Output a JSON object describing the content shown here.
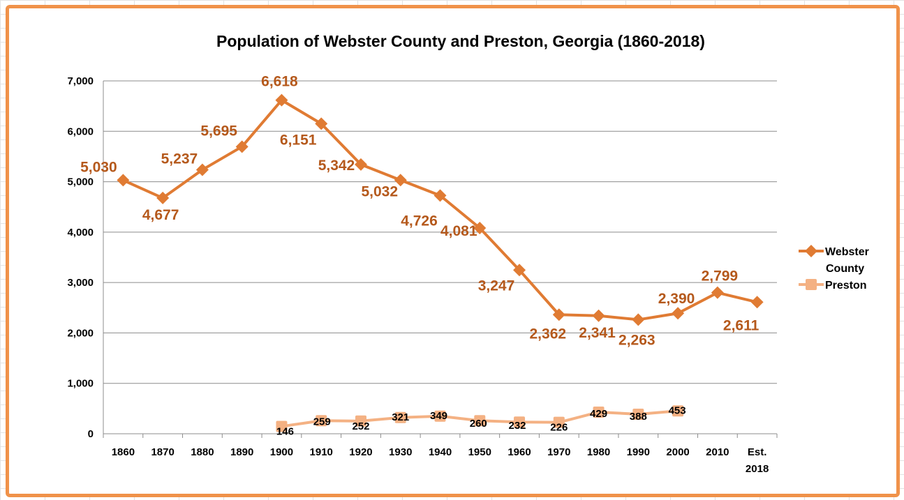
{
  "chart_data": {
    "type": "line",
    "title": "Population of Webster County and Preston, Georgia (1860-2018)",
    "categories": [
      "1860",
      "1870",
      "1880",
      "1890",
      "1900",
      "1910",
      "1920",
      "1930",
      "1940",
      "1950",
      "1960",
      "1970",
      "1980",
      "1990",
      "2000",
      "2010",
      "Est. 2018"
    ],
    "ylim": [
      0,
      7000
    ],
    "yticks": [
      0,
      1000,
      2000,
      3000,
      4000,
      5000,
      6000,
      7000
    ],
    "ytick_labels": [
      "0",
      "1,000",
      "2,000",
      "3,000",
      "4,000",
      "5,000",
      "6,000",
      "7,000"
    ],
    "grid": true,
    "legend_position": "right",
    "series": [
      {
        "name": "Webster County",
        "color": "#e07b33",
        "label_color": "#b5591c",
        "marker": "diamond",
        "values": [
          5030,
          4677,
          5237,
          5695,
          6618,
          6151,
          5342,
          5032,
          4726,
          4081,
          3247,
          2362,
          2341,
          2263,
          2390,
          2799,
          2611
        ],
        "labels": [
          "5,030",
          "4,677",
          "5,237",
          "5,695",
          "6,618",
          "6,151",
          "5,342",
          "5,032",
          "4,726",
          "4,081",
          "3,247",
          "2,362",
          "2,341",
          "2,263",
          "2,390",
          "2,799",
          "2,611"
        ]
      },
      {
        "name": "Preston",
        "color": "#f4b183",
        "marker": "square",
        "values": [
          null,
          null,
          null,
          null,
          146,
          259,
          252,
          321,
          349,
          260,
          232,
          226,
          429,
          388,
          453,
          null,
          null
        ],
        "labels": [
          "",
          "",
          "",
          "",
          "146",
          "259",
          "252",
          "321",
          "349",
          "260",
          "232",
          "226",
          "429",
          "388",
          "453",
          "",
          ""
        ]
      }
    ]
  }
}
